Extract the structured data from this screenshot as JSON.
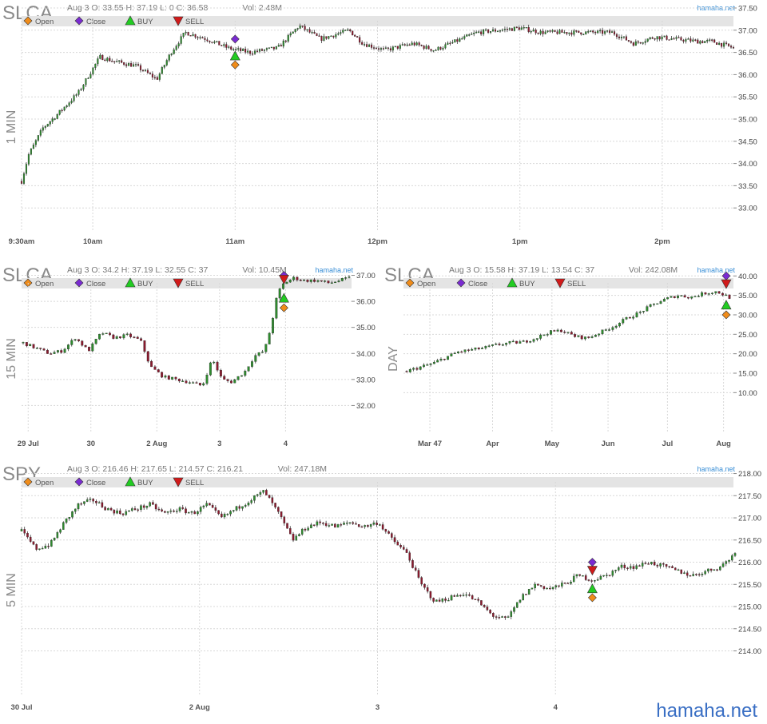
{
  "watermark": "hamaha.net",
  "colors": {
    "up": "#2e8b2e",
    "down": "#8b1a2e",
    "open_marker": "#f08c1a",
    "close_marker": "#7a2bd1",
    "buy_marker": "#22cc22",
    "sell_marker": "#d11a1a",
    "legend_bg": "#e4e4e4",
    "grid": "#d8d8d8",
    "brand": "#3a6fc4"
  },
  "legend_labels": {
    "open": "Open",
    "close": "Close",
    "buy": "BUY",
    "sell": "SELL"
  },
  "chart_data": [
    {
      "id": "slca_1min",
      "type": "candlestick",
      "symbol": "SLCA",
      "period_label": "1 MIN",
      "info": "Aug 3 O: 33.55 H: 37.19 L: 0 C: 36.58",
      "volume": "Vol: 2.48M",
      "source": "hamaha.net",
      "ylim": [
        32.5,
        37.5
      ],
      "yticks": [
        "37.50",
        "37.00",
        "36.50",
        "36.00",
        "35.50",
        "35.00",
        "34.50",
        "34.00",
        "33.50",
        "33.00"
      ],
      "x_labels": [
        "9:30am",
        "10am",
        "11am",
        "12pm",
        "1pm",
        "2pm"
      ],
      "price_path": [
        [
          0,
          33.6
        ],
        [
          0.01,
          34.2
        ],
        [
          0.03,
          34.8
        ],
        [
          0.05,
          35.1
        ],
        [
          0.08,
          35.6
        ],
        [
          0.11,
          36.4
        ],
        [
          0.13,
          36.3
        ],
        [
          0.16,
          36.2
        ],
        [
          0.19,
          35.9
        ],
        [
          0.21,
          36.5
        ],
        [
          0.23,
          36.95
        ],
        [
          0.26,
          36.8
        ],
        [
          0.29,
          36.6
        ],
        [
          0.32,
          36.5
        ],
        [
          0.36,
          36.6
        ],
        [
          0.39,
          37.1
        ],
        [
          0.42,
          36.8
        ],
        [
          0.46,
          37.0
        ],
        [
          0.48,
          36.7
        ],
        [
          0.51,
          36.55
        ],
        [
          0.55,
          36.7
        ],
        [
          0.58,
          36.55
        ],
        [
          0.61,
          36.75
        ],
        [
          0.64,
          36.95
        ],
        [
          0.67,
          37.0
        ],
        [
          0.7,
          37.05
        ],
        [
          0.73,
          36.95
        ],
        [
          0.77,
          36.95
        ],
        [
          0.8,
          36.95
        ],
        [
          0.83,
          36.95
        ],
        [
          0.86,
          36.7
        ],
        [
          0.89,
          36.85
        ],
        [
          0.92,
          36.8
        ],
        [
          0.95,
          36.75
        ],
        [
          0.97,
          36.75
        ],
        [
          1.0,
          36.6
        ]
      ],
      "markers": [
        {
          "type": "close",
          "x": 0.3,
          "y": 36.8
        },
        {
          "type": "buy",
          "x": 0.3,
          "y": 36.42
        },
        {
          "type": "open",
          "x": 0.3,
          "y": 36.22
        }
      ]
    },
    {
      "id": "slca_15min",
      "type": "candlestick",
      "symbol": "SLCA",
      "period_label": "15 MIN",
      "info": "Aug 3 O: 34.2 H: 37.19 L: 32.55 C: 37",
      "volume": "Vol: 10.45M",
      "source": "hamaha.net",
      "ylim": [
        31.0,
        37.2
      ],
      "yticks": [
        "37.00",
        "36.00",
        "35.00",
        "34.00",
        "33.00",
        "32.00"
      ],
      "x_labels": [
        "29 Jul",
        "30",
        "2 Aug",
        "3",
        "4"
      ],
      "price_path": [
        [
          0,
          34.4
        ],
        [
          0.04,
          34.2
        ],
        [
          0.08,
          34.0
        ],
        [
          0.12,
          34.1
        ],
        [
          0.16,
          34.6
        ],
        [
          0.2,
          34.1
        ],
        [
          0.24,
          34.8
        ],
        [
          0.28,
          34.6
        ],
        [
          0.32,
          34.7
        ],
        [
          0.36,
          34.5
        ],
        [
          0.39,
          33.5
        ],
        [
          0.43,
          33.1
        ],
        [
          0.47,
          33.0
        ],
        [
          0.51,
          32.9
        ],
        [
          0.55,
          32.75
        ],
        [
          0.58,
          33.8
        ],
        [
          0.61,
          33.0
        ],
        [
          0.64,
          32.9
        ],
        [
          0.68,
          33.3
        ],
        [
          0.71,
          33.9
        ],
        [
          0.74,
          34.1
        ],
        [
          0.76,
          35.0
        ],
        [
          0.78,
          36.3
        ],
        [
          0.8,
          36.7
        ],
        [
          0.83,
          36.9
        ],
        [
          0.86,
          36.8
        ],
        [
          0.9,
          36.8
        ],
        [
          0.94,
          36.7
        ],
        [
          0.97,
          36.8
        ],
        [
          1.0,
          36.9
        ]
      ],
      "markers": [
        {
          "type": "close",
          "x": 0.8,
          "y": 37.0
        },
        {
          "type": "sell",
          "x": 0.8,
          "y": 36.85
        },
        {
          "type": "buy",
          "x": 0.8,
          "y": 36.12
        },
        {
          "type": "open",
          "x": 0.8,
          "y": 35.75
        }
      ]
    },
    {
      "id": "slca_day",
      "type": "candlestick",
      "symbol": "SLCA",
      "period_label": "DAY",
      "info": "Aug 3 O: 15.58 H: 37.19 L: 13.54 C: 37",
      "volume": "Vol: 242.08M",
      "source": "hamaha.net",
      "ylim": [
        0,
        41.5
      ],
      "yticks": [
        "40.00",
        "35.00",
        "30.00",
        "25.00",
        "20.00",
        "15.00",
        "10.00"
      ],
      "x_labels": [
        "Mar 47",
        "Apr",
        "May",
        "Jun",
        "Jul",
        "Aug"
      ],
      "price_path": [
        [
          0,
          15.5
        ],
        [
          0.04,
          16.5
        ],
        [
          0.08,
          17.5
        ],
        [
          0.12,
          19.0
        ],
        [
          0.16,
          20.5
        ],
        [
          0.2,
          21.0
        ],
        [
          0.24,
          21.5
        ],
        [
          0.28,
          22.3
        ],
        [
          0.32,
          22.8
        ],
        [
          0.36,
          23.0
        ],
        [
          0.4,
          24.0
        ],
        [
          0.44,
          25.5
        ],
        [
          0.48,
          26.0
        ],
        [
          0.52,
          24.5
        ],
        [
          0.56,
          24.0
        ],
        [
          0.6,
          25.5
        ],
        [
          0.64,
          27.0
        ],
        [
          0.68,
          29.0
        ],
        [
          0.72,
          30.5
        ],
        [
          0.76,
          32.5
        ],
        [
          0.8,
          34.0
        ],
        [
          0.84,
          35.0
        ],
        [
          0.88,
          34.5
        ],
        [
          0.92,
          35.5
        ],
        [
          0.96,
          36.0
        ],
        [
          1.0,
          34.5
        ]
      ],
      "markers": [
        {
          "type": "close",
          "x": 0.99,
          "y": 40.0
        },
        {
          "type": "sell",
          "x": 0.99,
          "y": 38.0
        },
        {
          "type": "buy",
          "x": 0.99,
          "y": 32.5
        },
        {
          "type": "open",
          "x": 0.99,
          "y": 30.0
        }
      ]
    },
    {
      "id": "spy_5min",
      "type": "candlestick",
      "symbol": "SPY",
      "period_label": "5 MIN",
      "info": "Aug 3 O: 216.46 H: 217.65 L: 214.57 C: 216.21",
      "volume": "Vol: 247.18M",
      "source": "hamaha.net",
      "ylim": [
        213.0,
        218.1
      ],
      "yticks": [
        "218.00",
        "217.50",
        "217.00",
        "216.50",
        "216.00",
        "215.50",
        "215.00",
        "214.50",
        "214.00"
      ],
      "x_labels": [
        "30 Jul",
        "2 Aug",
        "3",
        "4"
      ],
      "price_path": [
        [
          0,
          216.7
        ],
        [
          0.02,
          216.3
        ],
        [
          0.04,
          216.4
        ],
        [
          0.06,
          216.9
        ],
        [
          0.08,
          217.3
        ],
        [
          0.1,
          217.4
        ],
        [
          0.12,
          217.2
        ],
        [
          0.14,
          217.1
        ],
        [
          0.16,
          217.2
        ],
        [
          0.18,
          217.3
        ],
        [
          0.2,
          217.1
        ],
        [
          0.22,
          217.2
        ],
        [
          0.24,
          217.1
        ],
        [
          0.26,
          217.3
        ],
        [
          0.28,
          217.0
        ],
        [
          0.3,
          217.2
        ],
        [
          0.32,
          217.4
        ],
        [
          0.34,
          217.6
        ],
        [
          0.36,
          217.1
        ],
        [
          0.38,
          216.5
        ],
        [
          0.4,
          216.8
        ],
        [
          0.42,
          216.9
        ],
        [
          0.44,
          216.8
        ],
        [
          0.46,
          216.9
        ],
        [
          0.48,
          216.8
        ],
        [
          0.5,
          216.9
        ],
        [
          0.52,
          216.5
        ],
        [
          0.54,
          216.2
        ],
        [
          0.56,
          215.5
        ],
        [
          0.58,
          215.1
        ],
        [
          0.6,
          215.2
        ],
        [
          0.62,
          215.3
        ],
        [
          0.64,
          215.1
        ],
        [
          0.66,
          214.8
        ],
        [
          0.68,
          214.7
        ],
        [
          0.7,
          215.2
        ],
        [
          0.72,
          215.5
        ],
        [
          0.74,
          215.4
        ],
        [
          0.76,
          215.5
        ],
        [
          0.78,
          215.7
        ],
        [
          0.8,
          215.6
        ],
        [
          0.82,
          215.7
        ],
        [
          0.84,
          215.9
        ],
        [
          0.86,
          215.9
        ],
        [
          0.88,
          216.0
        ],
        [
          0.9,
          215.9
        ],
        [
          0.92,
          215.8
        ],
        [
          0.94,
          215.7
        ],
        [
          0.96,
          215.8
        ],
        [
          0.98,
          215.9
        ],
        [
          1.0,
          216.2
        ]
      ],
      "markers": [
        {
          "type": "close",
          "x": 0.8,
          "y": 216.0
        },
        {
          "type": "sell",
          "x": 0.8,
          "y": 215.82
        },
        {
          "type": "buy",
          "x": 0.8,
          "y": 215.4
        },
        {
          "type": "open",
          "x": 0.8,
          "y": 215.2
        }
      ]
    }
  ]
}
